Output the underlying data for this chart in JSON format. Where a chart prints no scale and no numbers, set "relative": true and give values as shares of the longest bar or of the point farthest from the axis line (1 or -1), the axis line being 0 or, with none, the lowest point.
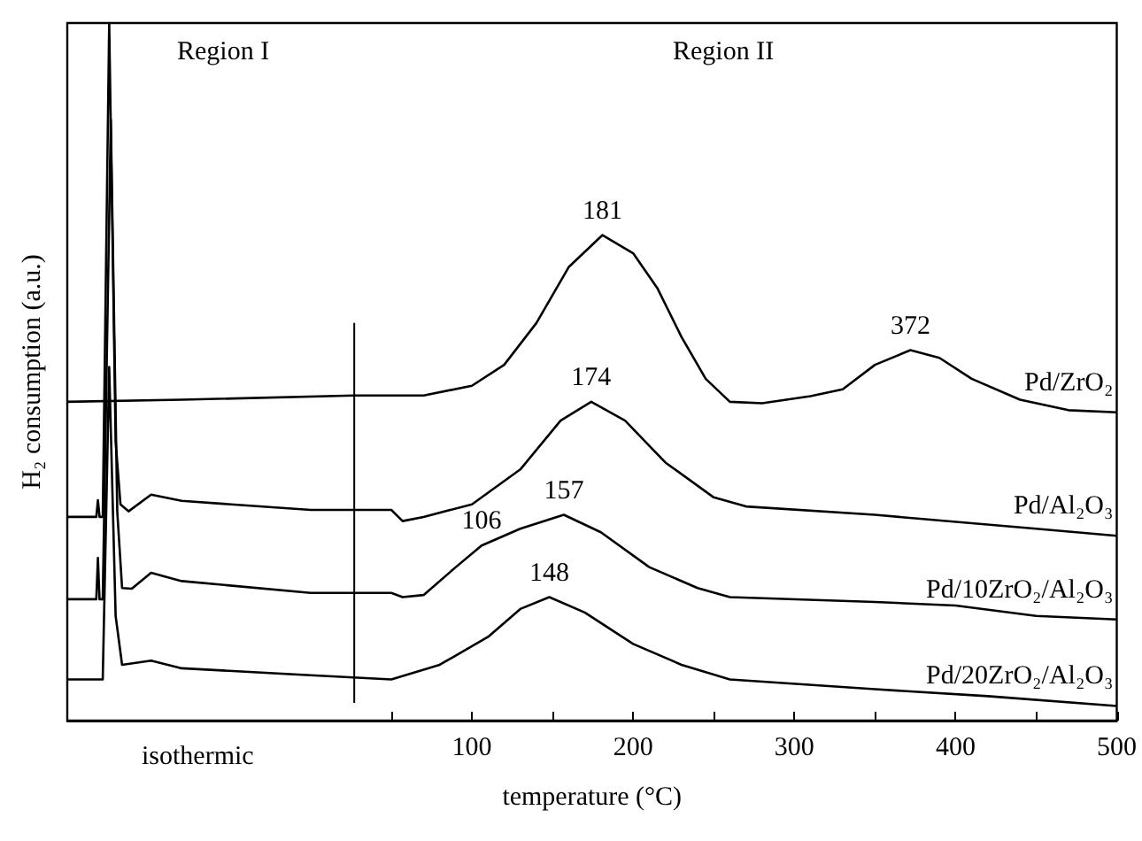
{
  "chart_data": {
    "type": "line",
    "relative": true,
    "xlabel": "temperature (°C)",
    "ylabel": "H₂ consumption (a.u.)",
    "xlim": [
      -151,
      500
    ],
    "xticks": [
      {
        "value": 50,
        "label": null
      },
      100,
      {
        "value": 150,
        "label": null
      },
      200,
      {
        "value": 250,
        "label": null
      },
      300,
      {
        "value": 350,
        "label": null
      },
      400,
      {
        "value": 450,
        "label": null
      },
      500
    ],
    "grid": false,
    "legend": false,
    "marker": "none",
    "line_style": "solid",
    "ref_lines": [
      {
        "axis": "x",
        "value": 27,
        "color": "#000000"
      }
    ],
    "annotations": [
      "Region I",
      "Region II",
      "isothermic",
      {
        "text": "181",
        "x": 181,
        "y": 0.696
      },
      {
        "text": "372",
        "x": 372,
        "y": 0.531
      },
      {
        "text": "174",
        "x": 174,
        "y": 0.457
      },
      {
        "text": "157",
        "x": 157,
        "y": 0.295
      },
      {
        "text": "106",
        "x": 106,
        "y": 0.251
      },
      {
        "text": "148",
        "x": 148,
        "y": 0.177
      }
    ],
    "series": [
      {
        "name": "Pd/ZrO₂",
        "color": "#000000",
        "x": [
          -151,
          -80,
          27,
          70,
          100,
          120,
          140,
          160,
          181,
          200,
          215,
          230,
          245,
          260,
          280,
          310,
          330,
          350,
          372,
          390,
          410,
          440,
          470,
          500
        ],
        "values": [
          0.457,
          0.46,
          0.466,
          0.466,
          0.48,
          0.51,
          0.57,
          0.65,
          0.696,
          0.67,
          0.62,
          0.55,
          0.49,
          0.457,
          0.455,
          0.465,
          0.475,
          0.51,
          0.531,
          0.52,
          0.49,
          0.46,
          0.445,
          0.442
        ]
      },
      {
        "name": "Pd/Al₂O₃",
        "color": "#000000",
        "x": [
          -151,
          -133,
          -132,
          -131,
          -129,
          -125,
          -121,
          -118,
          -113,
          -99,
          -80,
          0,
          50,
          57,
          70,
          100,
          130,
          155,
          174,
          195,
          220,
          250,
          270,
          350,
          450,
          500
        ],
        "values": [
          0.292,
          0.292,
          0.316,
          0.292,
          0.292,
          1.0,
          0.4,
          0.31,
          0.3,
          0.324,
          0.315,
          0.302,
          0.302,
          0.286,
          0.292,
          0.31,
          0.36,
          0.43,
          0.457,
          0.43,
          0.37,
          0.32,
          0.307,
          0.295,
          0.275,
          0.265
        ]
      },
      {
        "name": "Pd/10ZrO₂/Al₂O₃",
        "color": "#000000",
        "x": [
          -151,
          -133,
          -132,
          -131,
          -129,
          -124,
          -120,
          -117,
          -111,
          -99,
          -80,
          0,
          50,
          57,
          70,
          90,
          106,
          130,
          157,
          180,
          210,
          240,
          260,
          350,
          400,
          450,
          500
        ],
        "values": [
          0.174,
          0.174,
          0.233,
          0.174,
          0.174,
          0.861,
          0.3,
          0.19,
          0.189,
          0.212,
          0.2,
          0.183,
          0.183,
          0.177,
          0.18,
          0.22,
          0.251,
          0.275,
          0.295,
          0.27,
          0.22,
          0.19,
          0.177,
          0.17,
          0.165,
          0.15,
          0.145
        ]
      },
      {
        "name": "Pd/20ZrO₂/Al₂O₃",
        "color": "#000000",
        "x": [
          -151,
          -129,
          -125,
          -121,
          -117,
          -99,
          -80,
          0,
          50,
          80,
          110,
          130,
          148,
          170,
          200,
          230,
          260,
          350,
          420,
          500
        ],
        "values": [
          0.059,
          0.059,
          0.507,
          0.15,
          0.08,
          0.086,
          0.075,
          0.065,
          0.059,
          0.08,
          0.12,
          0.16,
          0.177,
          0.155,
          0.11,
          0.08,
          0.059,
          0.045,
          0.035,
          0.021
        ]
      }
    ]
  }
}
